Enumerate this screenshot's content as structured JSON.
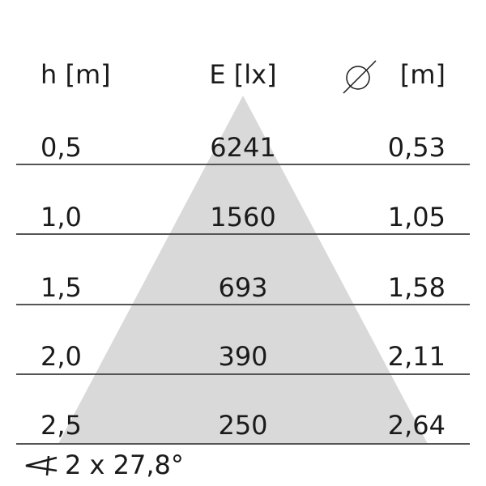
{
  "header": {
    "height": "h [m]",
    "illuminance": "E [lx]",
    "diameter_unit": "[m]",
    "diameter_icon": "diameter-icon"
  },
  "rows": [
    {
      "h": "0,5",
      "e": "6241",
      "d": "0,53"
    },
    {
      "h": "1,0",
      "e": "1560",
      "d": "1,05"
    },
    {
      "h": "1,5",
      "e": "693",
      "d": "1,58"
    },
    {
      "h": "2,0",
      "e": "390",
      "d": "2,11"
    },
    {
      "h": "2,5",
      "e": "250",
      "d": "2,64"
    }
  ],
  "footer": {
    "angle_icon": "angle-icon",
    "beam_angle": "2 x 27,8°"
  },
  "colors": {
    "cone": "#d9d9d9",
    "lines": "#555555",
    "text": "#1a1a1a"
  }
}
